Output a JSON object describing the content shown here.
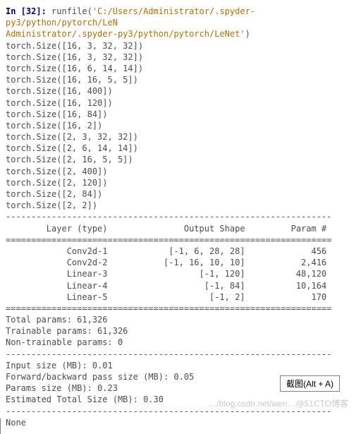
{
  "prompt": {
    "label": "In [32]:",
    "command": "runfile(",
    "path_line1": "'C:/Users/Administrator/.spyder-py3/python/pytorch/LeN",
    "path_line2": "Administrator/.spyder-py3/python/pytorch/LeNet'",
    "close": ")"
  },
  "torch_sizes_16": [
    "torch.Size([16, 3, 32, 32])",
    "torch.Size([16, 3, 32, 32])",
    "torch.Size([16, 6, 14, 14])",
    "torch.Size([16, 16, 5, 5])",
    "torch.Size([16, 400])",
    "torch.Size([16, 120])",
    "torch.Size([16, 84])",
    "torch.Size([16, 2])"
  ],
  "torch_sizes_2": [
    "torch.Size([2, 3, 32, 32])",
    "torch.Size([2, 6, 14, 14])",
    "torch.Size([2, 16, 5, 5])",
    "torch.Size([2, 400])",
    "torch.Size([2, 120])",
    "torch.Size([2, 84])",
    "torch.Size([2, 2])"
  ],
  "summary": {
    "hr_dash": "----------------------------------------------------------------",
    "hr_eq": "================================================================",
    "header": "        Layer (type)               Output Shape         Param #",
    "rows": [
      "            Conv2d-1            [-1, 6, 28, 28]             456",
      "            Conv2d-2           [-1, 16, 10, 10]           2,416",
      "            Linear-3                  [-1, 120]          48,120",
      "            Linear-4                   [-1, 84]          10,164",
      "            Linear-5                    [-1, 2]             170"
    ],
    "totals": [
      "Total params: 61,326",
      "Trainable params: 61,326",
      "Non-trainable params: 0"
    ],
    "sizes": [
      "Input size (MB): 0.01",
      "Forward/backward pass size (MB): 0.05",
      "Params size (MB): 0.23",
      "Estimated Total Size (MB): 0.30"
    ],
    "none": "None"
  },
  "snip_button": "截图(Alt + A)",
  "watermark": "…/blog.csdn.net/wen…@51CTO博客"
}
